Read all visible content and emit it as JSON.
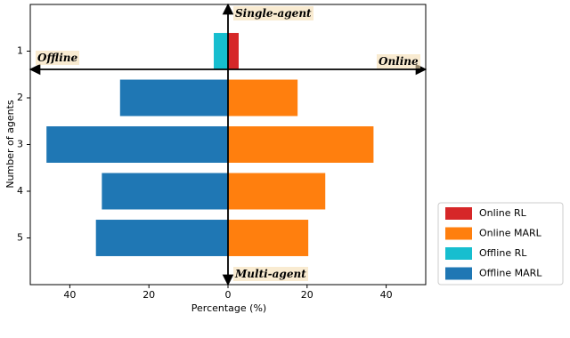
{
  "chart_data": {
    "type": "diverging-bar",
    "x_label": "Percentage (%)",
    "y_label": "Number of agents",
    "categories": [
      "1",
      "2",
      "3",
      "4",
      "5"
    ],
    "series": [
      {
        "name": "Online RL",
        "color": "#d62728",
        "values": [
          2.7,
          null,
          null,
          null,
          null
        ]
      },
      {
        "name": "Online MARL",
        "color": "#ff7f0e",
        "values": [
          null,
          17.6,
          36.8,
          24.6,
          20.3
        ]
      },
      {
        "name": "Offline RL",
        "color": "#17becf",
        "values": [
          -3.6,
          null,
          null,
          null,
          null
        ]
      },
      {
        "name": "Offline MARL",
        "color": "#1f77b4",
        "values": [
          null,
          -27.3,
          -45.9,
          -31.9,
          -33.4
        ]
      }
    ],
    "xlim": [
      -50,
      50
    ],
    "xticks": [
      {
        "value": -40,
        "label": "40"
      },
      {
        "value": -20,
        "label": "20"
      },
      0,
      20,
      40
    ],
    "annotations": [
      "Single-agent",
      "Multi-agent",
      "Offline",
      "Online"
    ]
  }
}
